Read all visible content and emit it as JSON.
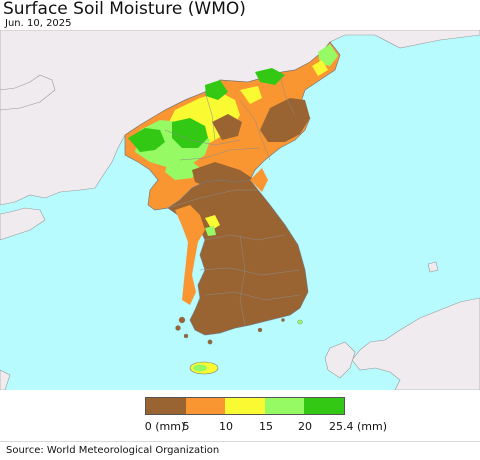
{
  "header": {
    "title": "Surface Soil Moisture (WMO)",
    "date": "Jun. 10, 2025"
  },
  "map": {
    "region": "Korean Peninsula",
    "colors": {
      "ocean": "#b7fbff",
      "land_nodata": "#f0ebee",
      "border": "#808080"
    }
  },
  "legend": {
    "ticks": [
      "0 (mm)",
      "5",
      "10",
      "15",
      "20",
      "25.4 (mm)"
    ],
    "colors": [
      "#9a6432",
      "#fa9632",
      "#fafa32",
      "#96fa64",
      "#32c814"
    ]
  },
  "footer": {
    "source": "Source: World Meteorological Organization"
  }
}
